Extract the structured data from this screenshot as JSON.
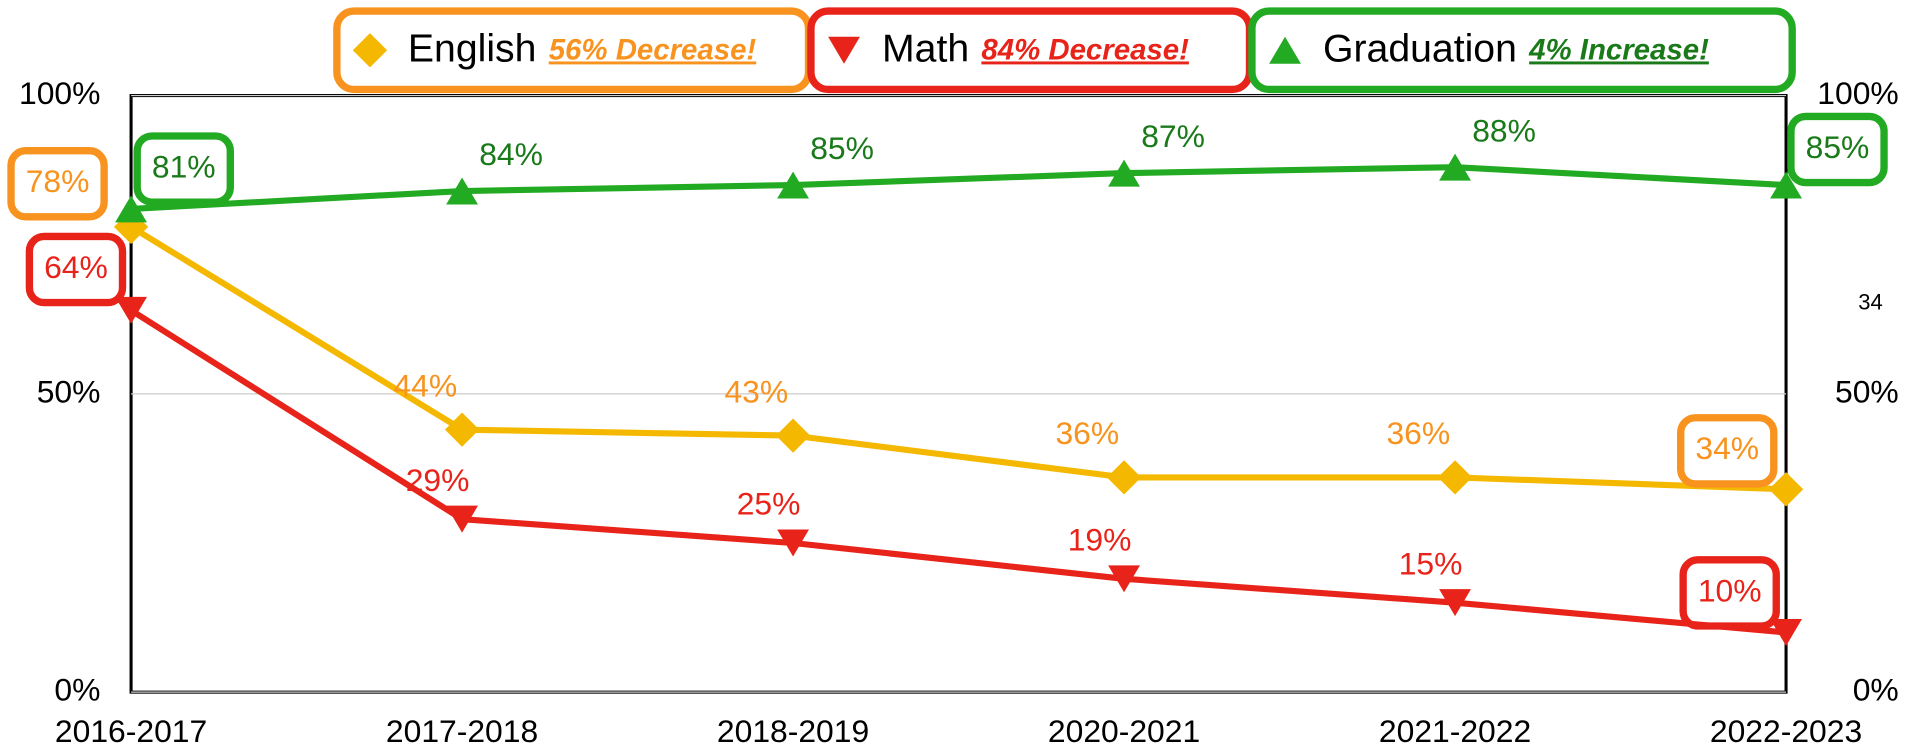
{
  "chart_data": {
    "type": "line",
    "categories": [
      "2016-2017",
      "2017-2018",
      "2018-2019",
      "2020-2021",
      "2021-2022",
      "2022-2023"
    ],
    "ylim": [
      0,
      100
    ],
    "yticks": [
      {
        "value": 0,
        "label": "0%"
      },
      {
        "value": 50,
        "label": "50%"
      },
      {
        "value": 100,
        "label": "100%"
      }
    ],
    "y2lim": [
      0,
      100
    ],
    "y2ticks": [
      {
        "value": 0,
        "label": "0%"
      },
      {
        "value": 50,
        "label": "50%"
      },
      {
        "value": 100,
        "label": "100%"
      }
    ],
    "grid": true,
    "legend": "top",
    "annotation": "34",
    "series": [
      {
        "name": "English",
        "color": "#f5b800",
        "label_color": "#f7931e",
        "marker": "diamond",
        "note": "56% Decrease!",
        "values": [
          78,
          44,
          43,
          36,
          36,
          34
        ],
        "value_labels": [
          "78%",
          "44%",
          "43%",
          "36%",
          "36%",
          "34%"
        ]
      },
      {
        "name": "Math",
        "color": "#e8231a",
        "label_color": "#e8231a",
        "marker": "triangle-down",
        "note": "84% Decrease!",
        "values": [
          64,
          29,
          25,
          19,
          15,
          10
        ],
        "value_labels": [
          "64%",
          "29%",
          "25%",
          "19%",
          "15%",
          "10%"
        ]
      },
      {
        "name": "Graduation",
        "color": "#22aa22",
        "label_color": "#1a7a1a",
        "marker": "triangle-up",
        "note": "4% Increase!",
        "values": [
          81,
          84,
          85,
          87,
          88,
          85
        ],
        "value_labels": [
          "81%",
          "84%",
          "85%",
          "87%",
          "88%",
          "85%"
        ]
      }
    ]
  }
}
